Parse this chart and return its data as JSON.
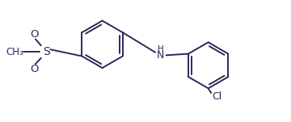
{
  "bg_color": "#ffffff",
  "line_color": "#2a2a5a",
  "line_width": 1.4,
  "label_color": "#2a2a5a",
  "figsize": [
    3.6,
    1.51
  ],
  "dpi": 100,
  "xlim": [
    0,
    10
  ],
  "ylim": [
    0,
    4.2
  ]
}
